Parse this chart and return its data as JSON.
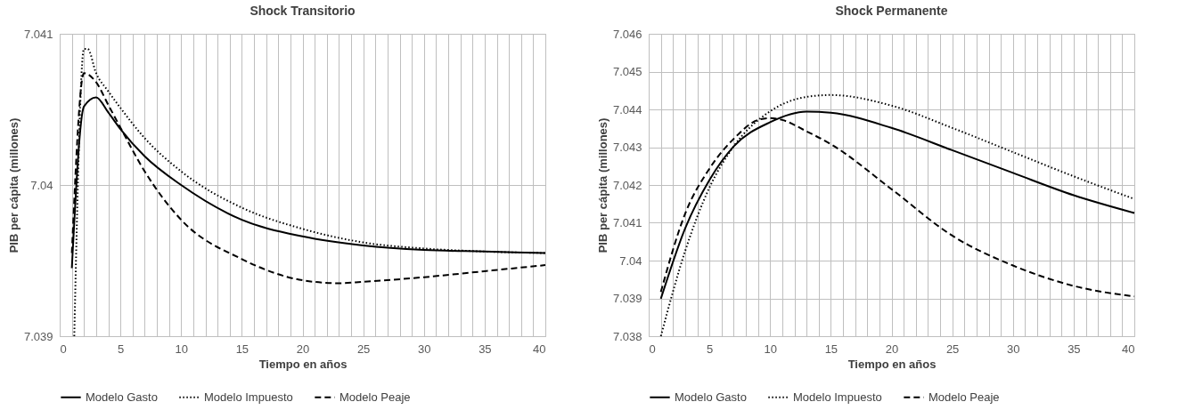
{
  "chart_data": [
    {
      "type": "line",
      "title": "Shock Transitorio",
      "xlabel": "Tiempo en años",
      "ylabel": "PIB per cápita (millones)",
      "xlim": [
        0,
        40
      ],
      "ylim": [
        7.039,
        7.041
      ],
      "yticks": [
        7.039,
        7.04,
        7.041
      ],
      "xticks": [
        0,
        {
          "value": 1,
          "label": null
        },
        {
          "value": 2,
          "label": null
        },
        {
          "value": 3,
          "label": null
        },
        {
          "value": 4,
          "label": null
        },
        5,
        {
          "value": 6,
          "label": null
        },
        {
          "value": 7,
          "label": null
        },
        {
          "value": 8,
          "label": null
        },
        {
          "value": 9,
          "label": null
        },
        10,
        {
          "value": 11,
          "label": null
        },
        {
          "value": 12,
          "label": null
        },
        {
          "value": 13,
          "label": null
        },
        {
          "value": 14,
          "label": null
        },
        15,
        {
          "value": 16,
          "label": null
        },
        {
          "value": 17,
          "label": null
        },
        {
          "value": 18,
          "label": null
        },
        {
          "value": 19,
          "label": null
        },
        20,
        {
          "value": 21,
          "label": null
        },
        {
          "value": 22,
          "label": null
        },
        {
          "value": 23,
          "label": null
        },
        {
          "value": 24,
          "label": null
        },
        25,
        {
          "value": 26,
          "label": null
        },
        {
          "value": 27,
          "label": null
        },
        {
          "value": 28,
          "label": null
        },
        {
          "value": 29,
          "label": null
        },
        30,
        {
          "value": 31,
          "label": null
        },
        {
          "value": 32,
          "label": null
        },
        {
          "value": 33,
          "label": null
        },
        {
          "value": 34,
          "label": null
        },
        35,
        {
          "value": 36,
          "label": null
        },
        {
          "value": 37,
          "label": null
        },
        {
          "value": 38,
          "label": null
        },
        {
          "value": 39,
          "label": null
        },
        40
      ],
      "grid": true,
      "legend": "bottom",
      "series": [
        {
          "name": "Modelo Gasto",
          "color": "#000000",
          "line_style": "solid",
          "x": [
            1,
            2,
            3,
            4,
            5,
            7,
            10,
            15,
            20,
            25,
            30,
            35,
            40
          ],
          "values": [
            7.03945,
            7.04052,
            7.04058,
            7.04048,
            7.04037,
            7.04019,
            7.04,
            7.03977,
            7.03966,
            7.0396,
            7.03957,
            7.03956,
            7.03955
          ]
        },
        {
          "name": "Modelo Impuesto",
          "color": "#000000",
          "line_style": "dotted",
          "x": [
            1.2,
            2,
            2.3,
            3,
            4,
            5,
            7,
            10,
            15,
            20,
            25,
            30,
            35,
            40
          ],
          "values": [
            7.039,
            7.0409,
            7.0409,
            7.04074,
            7.04062,
            7.04051,
            7.04031,
            7.04009,
            7.03985,
            7.03971,
            7.03962,
            7.03958,
            7.03956,
            7.03955
          ]
        },
        {
          "name": "Modelo Peaje",
          "color": "#000000",
          "line_style": "dashed",
          "x": [
            1,
            2,
            3,
            4,
            5,
            7,
            10,
            15,
            20,
            23,
            25,
            30,
            35,
            40
          ],
          "values": [
            7.03955,
            7.04074,
            7.04068,
            7.04053,
            7.04038,
            7.04009,
            7.03977,
            7.03951,
            7.03937,
            7.03935,
            7.03936,
            7.03939,
            7.03943,
            7.03947
          ]
        }
      ]
    },
    {
      "type": "line",
      "title": "Shock Permanente",
      "xlabel": "Tiempo en años",
      "ylabel": "PIB per cápita (millones)",
      "xlim": [
        0,
        40
      ],
      "ylim": [
        7.038,
        7.046
      ],
      "yticks": [
        7.038,
        7.039,
        7.04,
        7.041,
        7.042,
        7.043,
        7.044,
        7.045,
        7.046
      ],
      "xticks": [
        0,
        {
          "value": 1,
          "label": null
        },
        {
          "value": 2,
          "label": null
        },
        {
          "value": 3,
          "label": null
        },
        {
          "value": 4,
          "label": null
        },
        5,
        {
          "value": 6,
          "label": null
        },
        {
          "value": 7,
          "label": null
        },
        {
          "value": 8,
          "label": null
        },
        {
          "value": 9,
          "label": null
        },
        10,
        {
          "value": 11,
          "label": null
        },
        {
          "value": 12,
          "label": null
        },
        {
          "value": 13,
          "label": null
        },
        {
          "value": 14,
          "label": null
        },
        15,
        {
          "value": 16,
          "label": null
        },
        {
          "value": 17,
          "label": null
        },
        {
          "value": 18,
          "label": null
        },
        {
          "value": 19,
          "label": null
        },
        20,
        {
          "value": 21,
          "label": null
        },
        {
          "value": 22,
          "label": null
        },
        {
          "value": 23,
          "label": null
        },
        {
          "value": 24,
          "label": null
        },
        25,
        {
          "value": 26,
          "label": null
        },
        {
          "value": 27,
          "label": null
        },
        {
          "value": 28,
          "label": null
        },
        {
          "value": 29,
          "label": null
        },
        30,
        {
          "value": 31,
          "label": null
        },
        {
          "value": 32,
          "label": null
        },
        {
          "value": 33,
          "label": null
        },
        {
          "value": 34,
          "label": null
        },
        35,
        {
          "value": 36,
          "label": null
        },
        {
          "value": 37,
          "label": null
        },
        {
          "value": 38,
          "label": null
        },
        {
          "value": 39,
          "label": null
        },
        40
      ],
      "grid": true,
      "legend": "bottom",
      "series": [
        {
          "name": "Modelo Gasto",
          "color": "#000000",
          "line_style": "solid",
          "x": [
            1,
            3,
            5,
            7,
            10,
            13,
            15,
            20,
            25,
            30,
            35,
            40
          ],
          "values": [
            7.03899,
            7.04085,
            7.04213,
            7.04302,
            7.04366,
            7.04394,
            7.04391,
            7.04351,
            7.04292,
            7.04232,
            7.04173,
            7.04126
          ]
        },
        {
          "name": "Modelo Impuesto",
          "color": "#000000",
          "line_style": "dotted",
          "x": [
            1,
            3,
            5,
            7,
            10,
            13,
            15,
            20,
            25,
            30,
            35,
            40
          ],
          "values": [
            7.038,
            7.04025,
            7.04193,
            7.04302,
            7.04395,
            7.04433,
            7.04438,
            7.0441,
            7.04351,
            7.04287,
            7.04223,
            7.04163
          ]
        },
        {
          "name": "Modelo Peaje",
          "color": "#000000",
          "line_style": "dashed",
          "x": [
            1,
            3,
            5,
            7,
            9,
            10,
            11,
            13,
            15,
            20,
            25,
            30,
            35,
            40
          ],
          "values": [
            7.03917,
            7.04124,
            7.04243,
            7.04322,
            7.04372,
            7.04377,
            7.04372,
            7.04342,
            7.04308,
            7.04189,
            7.04066,
            7.03987,
            7.03933,
            7.03905
          ]
        }
      ]
    }
  ]
}
